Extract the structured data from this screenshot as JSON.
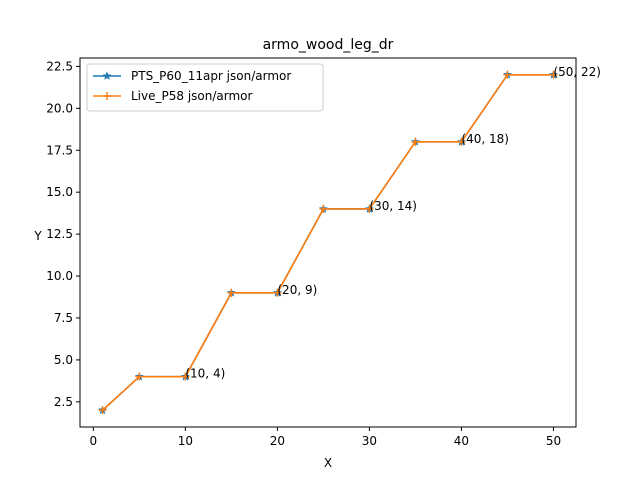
{
  "chart_data": {
    "type": "line",
    "title": "armo_wood_leg_dr",
    "xlabel": "X",
    "ylabel": "Y",
    "xlim": [
      -1.45,
      52.45
    ],
    "ylim": [
      1.0,
      23.0
    ],
    "xticks": [
      0,
      10,
      20,
      30,
      40,
      50
    ],
    "yticks": [
      2.5,
      5.0,
      7.5,
      10.0,
      12.5,
      15.0,
      17.5,
      20.0,
      22.5
    ],
    "ytick_labels": [
      "2.5",
      "5.0",
      "7.5",
      "10.0",
      "12.5",
      "15.0",
      "17.5",
      "20.0",
      "22.5"
    ],
    "grid": false,
    "legend_position": "top-left",
    "x": [
      1,
      5,
      10,
      15,
      20,
      25,
      30,
      35,
      40,
      45,
      50
    ],
    "series": [
      {
        "name": "PTS_P60_11apr json/armor",
        "color": "#1f77b4",
        "marker": "star",
        "values": [
          2,
          4,
          4,
          9,
          9,
          14,
          14,
          18,
          18,
          22,
          22
        ]
      },
      {
        "name": "Live_P58 json/armor",
        "color": "#ff7f0e",
        "marker": "plus",
        "values": [
          2,
          4,
          4,
          9,
          9,
          14,
          14,
          18,
          18,
          22,
          22
        ]
      }
    ],
    "annotations": [
      {
        "text": "(10, 4)",
        "x": 10,
        "y": 4
      },
      {
        "text": "(20, 9)",
        "x": 20,
        "y": 9
      },
      {
        "text": "(30, 14)",
        "x": 30,
        "y": 14
      },
      {
        "text": "(40, 18)",
        "x": 40,
        "y": 18
      },
      {
        "text": "(50, 22)",
        "x": 50,
        "y": 22
      }
    ]
  }
}
